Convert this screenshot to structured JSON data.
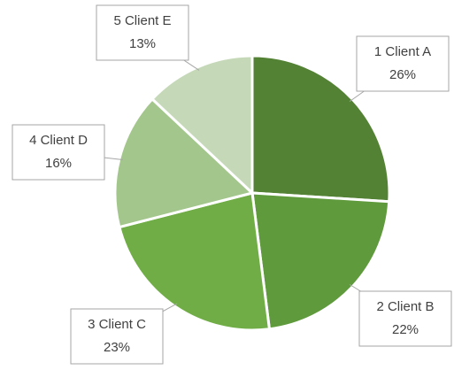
{
  "chart_data": {
    "type": "pie",
    "categories": [
      "1 Client A",
      "2 Client B",
      "3 Client C",
      "4 Client D",
      "5 Client E"
    ],
    "values": [
      26,
      22,
      23,
      16,
      13
    ],
    "value_labels": [
      "26%",
      "22%",
      "23%",
      "16%",
      "13%"
    ],
    "colors": [
      "#548235",
      "#5f9a3c",
      "#70ad47",
      "#a3c68c",
      "#c5d9b8"
    ]
  }
}
